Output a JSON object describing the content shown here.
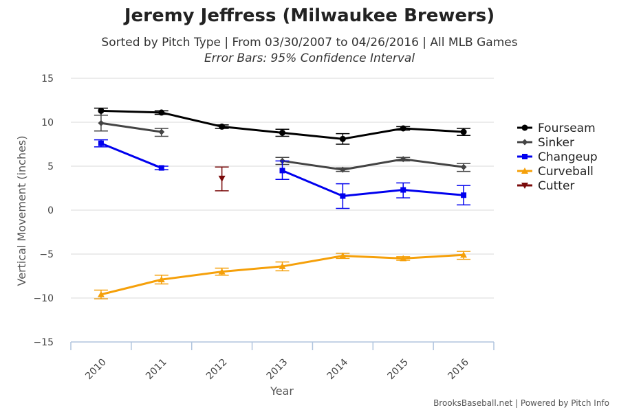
{
  "chart_data": {
    "type": "line",
    "title": "Jeremy Jeffress (Milwaukee Brewers)",
    "subtitle": "Sorted by Pitch Type | From 03/30/2007 to 04/26/2016 | All MLB Games",
    "subtitle2": "Error Bars: 95% Confidence Interval",
    "xlabel": "Year",
    "ylabel": "Vertical Movement (inches)",
    "categories": [
      "2010",
      "2011",
      "2012",
      "2013",
      "2014",
      "2015",
      "2016"
    ],
    "ylim": [
      -15,
      15
    ],
    "yticks": [
      15,
      10,
      5,
      0,
      -5,
      -10,
      -15
    ],
    "yticklabels": [
      "15",
      "10",
      "5",
      "0",
      "−5",
      "−10",
      "−15"
    ],
    "grid": true,
    "legend_position": "right",
    "series": [
      {
        "name": "Fourseam",
        "color": "#000000",
        "marker": "circle",
        "values": [
          11.3,
          11.1,
          9.5,
          8.8,
          8.1,
          9.3,
          8.9
        ],
        "err_low": [
          10.8,
          10.9,
          9.3,
          8.4,
          7.5,
          9.1,
          8.5
        ],
        "err_high": [
          11.6,
          11.3,
          9.7,
          9.2,
          8.7,
          9.5,
          9.3
        ]
      },
      {
        "name": "Sinker",
        "color": "#444444",
        "marker": "diamond",
        "values": [
          9.9,
          8.9,
          null,
          5.6,
          4.6,
          5.8,
          4.9
        ],
        "err_low": [
          9.0,
          8.4,
          null,
          5.2,
          4.4,
          5.6,
          4.4
        ],
        "err_high": [
          10.8,
          9.3,
          null,
          6.0,
          4.8,
          6.0,
          5.3
        ]
      },
      {
        "name": "Changeup",
        "color": "#0000ee",
        "marker": "square",
        "values": [
          7.6,
          4.8,
          null,
          4.5,
          1.6,
          2.3,
          1.7
        ],
        "err_low": [
          7.2,
          4.6,
          null,
          3.5,
          0.2,
          1.4,
          0.6
        ],
        "err_high": [
          8.0,
          5.0,
          null,
          5.6,
          3.0,
          3.1,
          2.8
        ]
      },
      {
        "name": "Curveball",
        "color": "#f5a00a",
        "marker": "triangle-up",
        "values": [
          -9.6,
          -7.9,
          -7.0,
          -6.4,
          -5.2,
          -5.5,
          -5.1
        ],
        "err_low": [
          -10.1,
          -8.4,
          -7.4,
          -6.9,
          -5.5,
          -5.7,
          -5.6
        ],
        "err_high": [
          -9.1,
          -7.4,
          -6.6,
          -5.9,
          -4.9,
          -5.3,
          -4.7
        ]
      },
      {
        "name": "Cutter",
        "color": "#7a0a0a",
        "marker": "triangle-down",
        "values": [
          null,
          null,
          3.6,
          null,
          null,
          null,
          null
        ],
        "err_low": [
          null,
          null,
          2.2,
          null,
          null,
          null,
          null
        ],
        "err_high": [
          null,
          null,
          4.9,
          null,
          null,
          null,
          null
        ]
      }
    ]
  },
  "credits": "BrooksBaseball.net | Powered by Pitch Info"
}
